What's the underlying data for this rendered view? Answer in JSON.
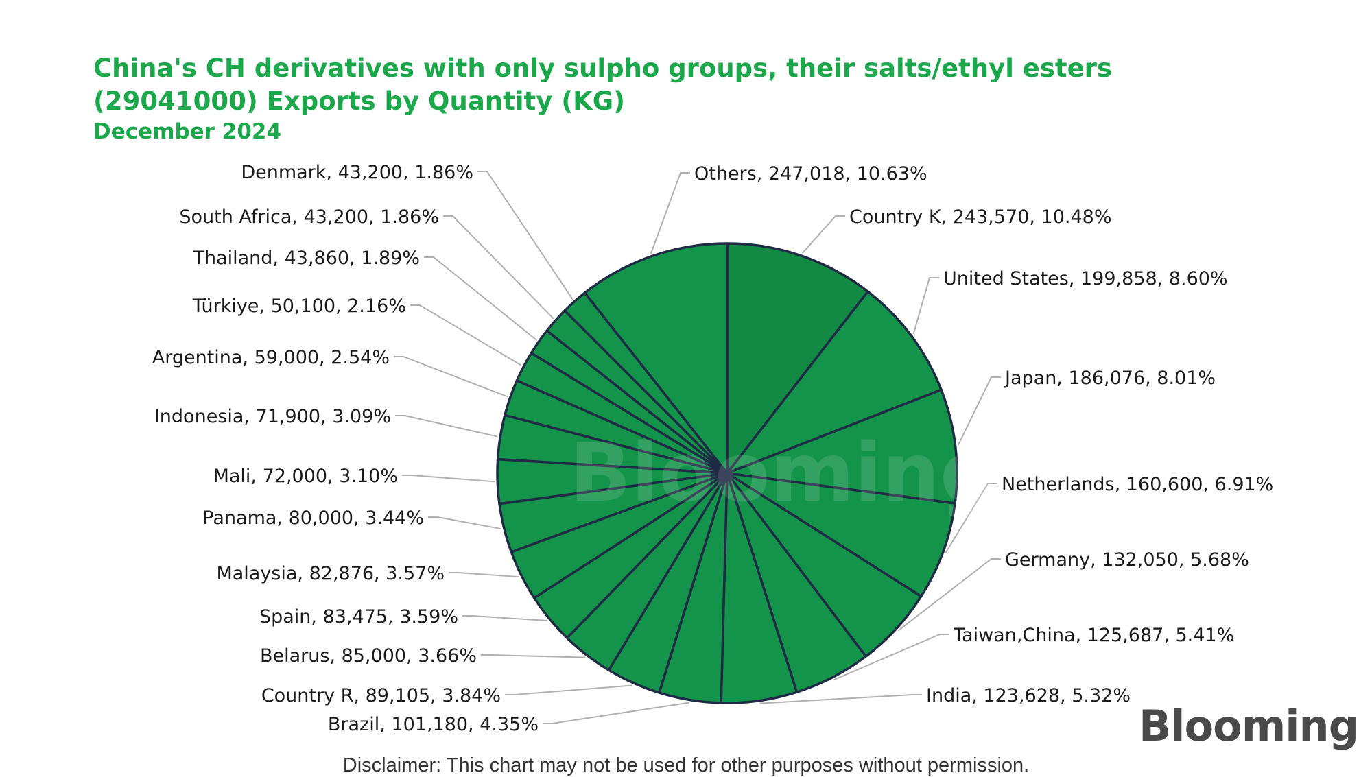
{
  "title_lines": [
    "China's CH derivatives with only sulpho groups, their salts/ethyl esters",
    "(29041000) Exports by Quantity (KG)"
  ],
  "subtitle": "December 2024",
  "disclaimer": "Disclaimer: This chart may not be used for other purposes without permission.",
  "logo": "Blooming",
  "watermark": "Blooming",
  "colors": {
    "slice": "#14944a",
    "slice_dark": "#138a44",
    "border": "#1f2a44",
    "title": "#1aa84a"
  },
  "chart_data": {
    "type": "pie",
    "title": "China's CH derivatives with only sulpho groups, their salts/ethyl esters (29041000) Exports by Quantity (KG)",
    "subtitle": "December 2024",
    "slices": [
      {
        "label": "Country K",
        "value": 243570,
        "percent": "10.48%",
        "text": "Country K, 243,570, 10.48%"
      },
      {
        "label": "United States",
        "value": 199858,
        "percent": "8.60%",
        "text": "United States, 199,858, 8.60%"
      },
      {
        "label": "Japan",
        "value": 186076,
        "percent": "8.01%",
        "text": "Japan, 186,076, 8.01%"
      },
      {
        "label": "Netherlands",
        "value": 160600,
        "percent": "6.91%",
        "text": "Netherlands, 160,600, 6.91%"
      },
      {
        "label": "Germany",
        "value": 132050,
        "percent": "5.68%",
        "text": "Germany, 132,050, 5.68%"
      },
      {
        "label": "Taiwan,China",
        "value": 125687,
        "percent": "5.41%",
        "text": "Taiwan,China, 125,687, 5.41%"
      },
      {
        "label": "India",
        "value": 123628,
        "percent": "5.32%",
        "text": "India, 123,628, 5.32%"
      },
      {
        "label": "Brazil",
        "value": 101180,
        "percent": "4.35%",
        "text": "Brazil, 101,180, 4.35%"
      },
      {
        "label": "Country R",
        "value": 89105,
        "percent": "3.84%",
        "text": "Country R, 89,105, 3.84%"
      },
      {
        "label": "Belarus",
        "value": 85000,
        "percent": "3.66%",
        "text": "Belarus, 85,000, 3.66%"
      },
      {
        "label": "Spain",
        "value": 83475,
        "percent": "3.59%",
        "text": "Spain, 83,475, 3.59%"
      },
      {
        "label": "Malaysia",
        "value": 82876,
        "percent": "3.57%",
        "text": "Malaysia, 82,876, 3.57%"
      },
      {
        "label": "Panama",
        "value": 80000,
        "percent": "3.44%",
        "text": "Panama, 80,000, 3.44%"
      },
      {
        "label": "Mali",
        "value": 72000,
        "percent": "3.10%",
        "text": "Mali, 72,000, 3.10%"
      },
      {
        "label": "Indonesia",
        "value": 71900,
        "percent": "3.09%",
        "text": "Indonesia, 71,900, 3.09%"
      },
      {
        "label": "Argentina",
        "value": 59000,
        "percent": "2.54%",
        "text": "Argentina, 59,000, 2.54%"
      },
      {
        "label": "Türkiye",
        "value": 50100,
        "percent": "2.16%",
        "text": "Türkiye, 50,100, 2.16%"
      },
      {
        "label": "Thailand",
        "value": 43860,
        "percent": "1.89%",
        "text": "Thailand, 43,860, 1.89%"
      },
      {
        "label": "South Africa",
        "value": 43200,
        "percent": "1.86%",
        "text": "South Africa, 43,200, 1.86%"
      },
      {
        "label": "Denmark",
        "value": 43200,
        "percent": "1.86%",
        "text": "Denmark, 43,200, 1.86%"
      },
      {
        "label": "Others",
        "value": 247018,
        "percent": "10.63%",
        "text": "Others, 247,018, 10.63%"
      }
    ]
  }
}
